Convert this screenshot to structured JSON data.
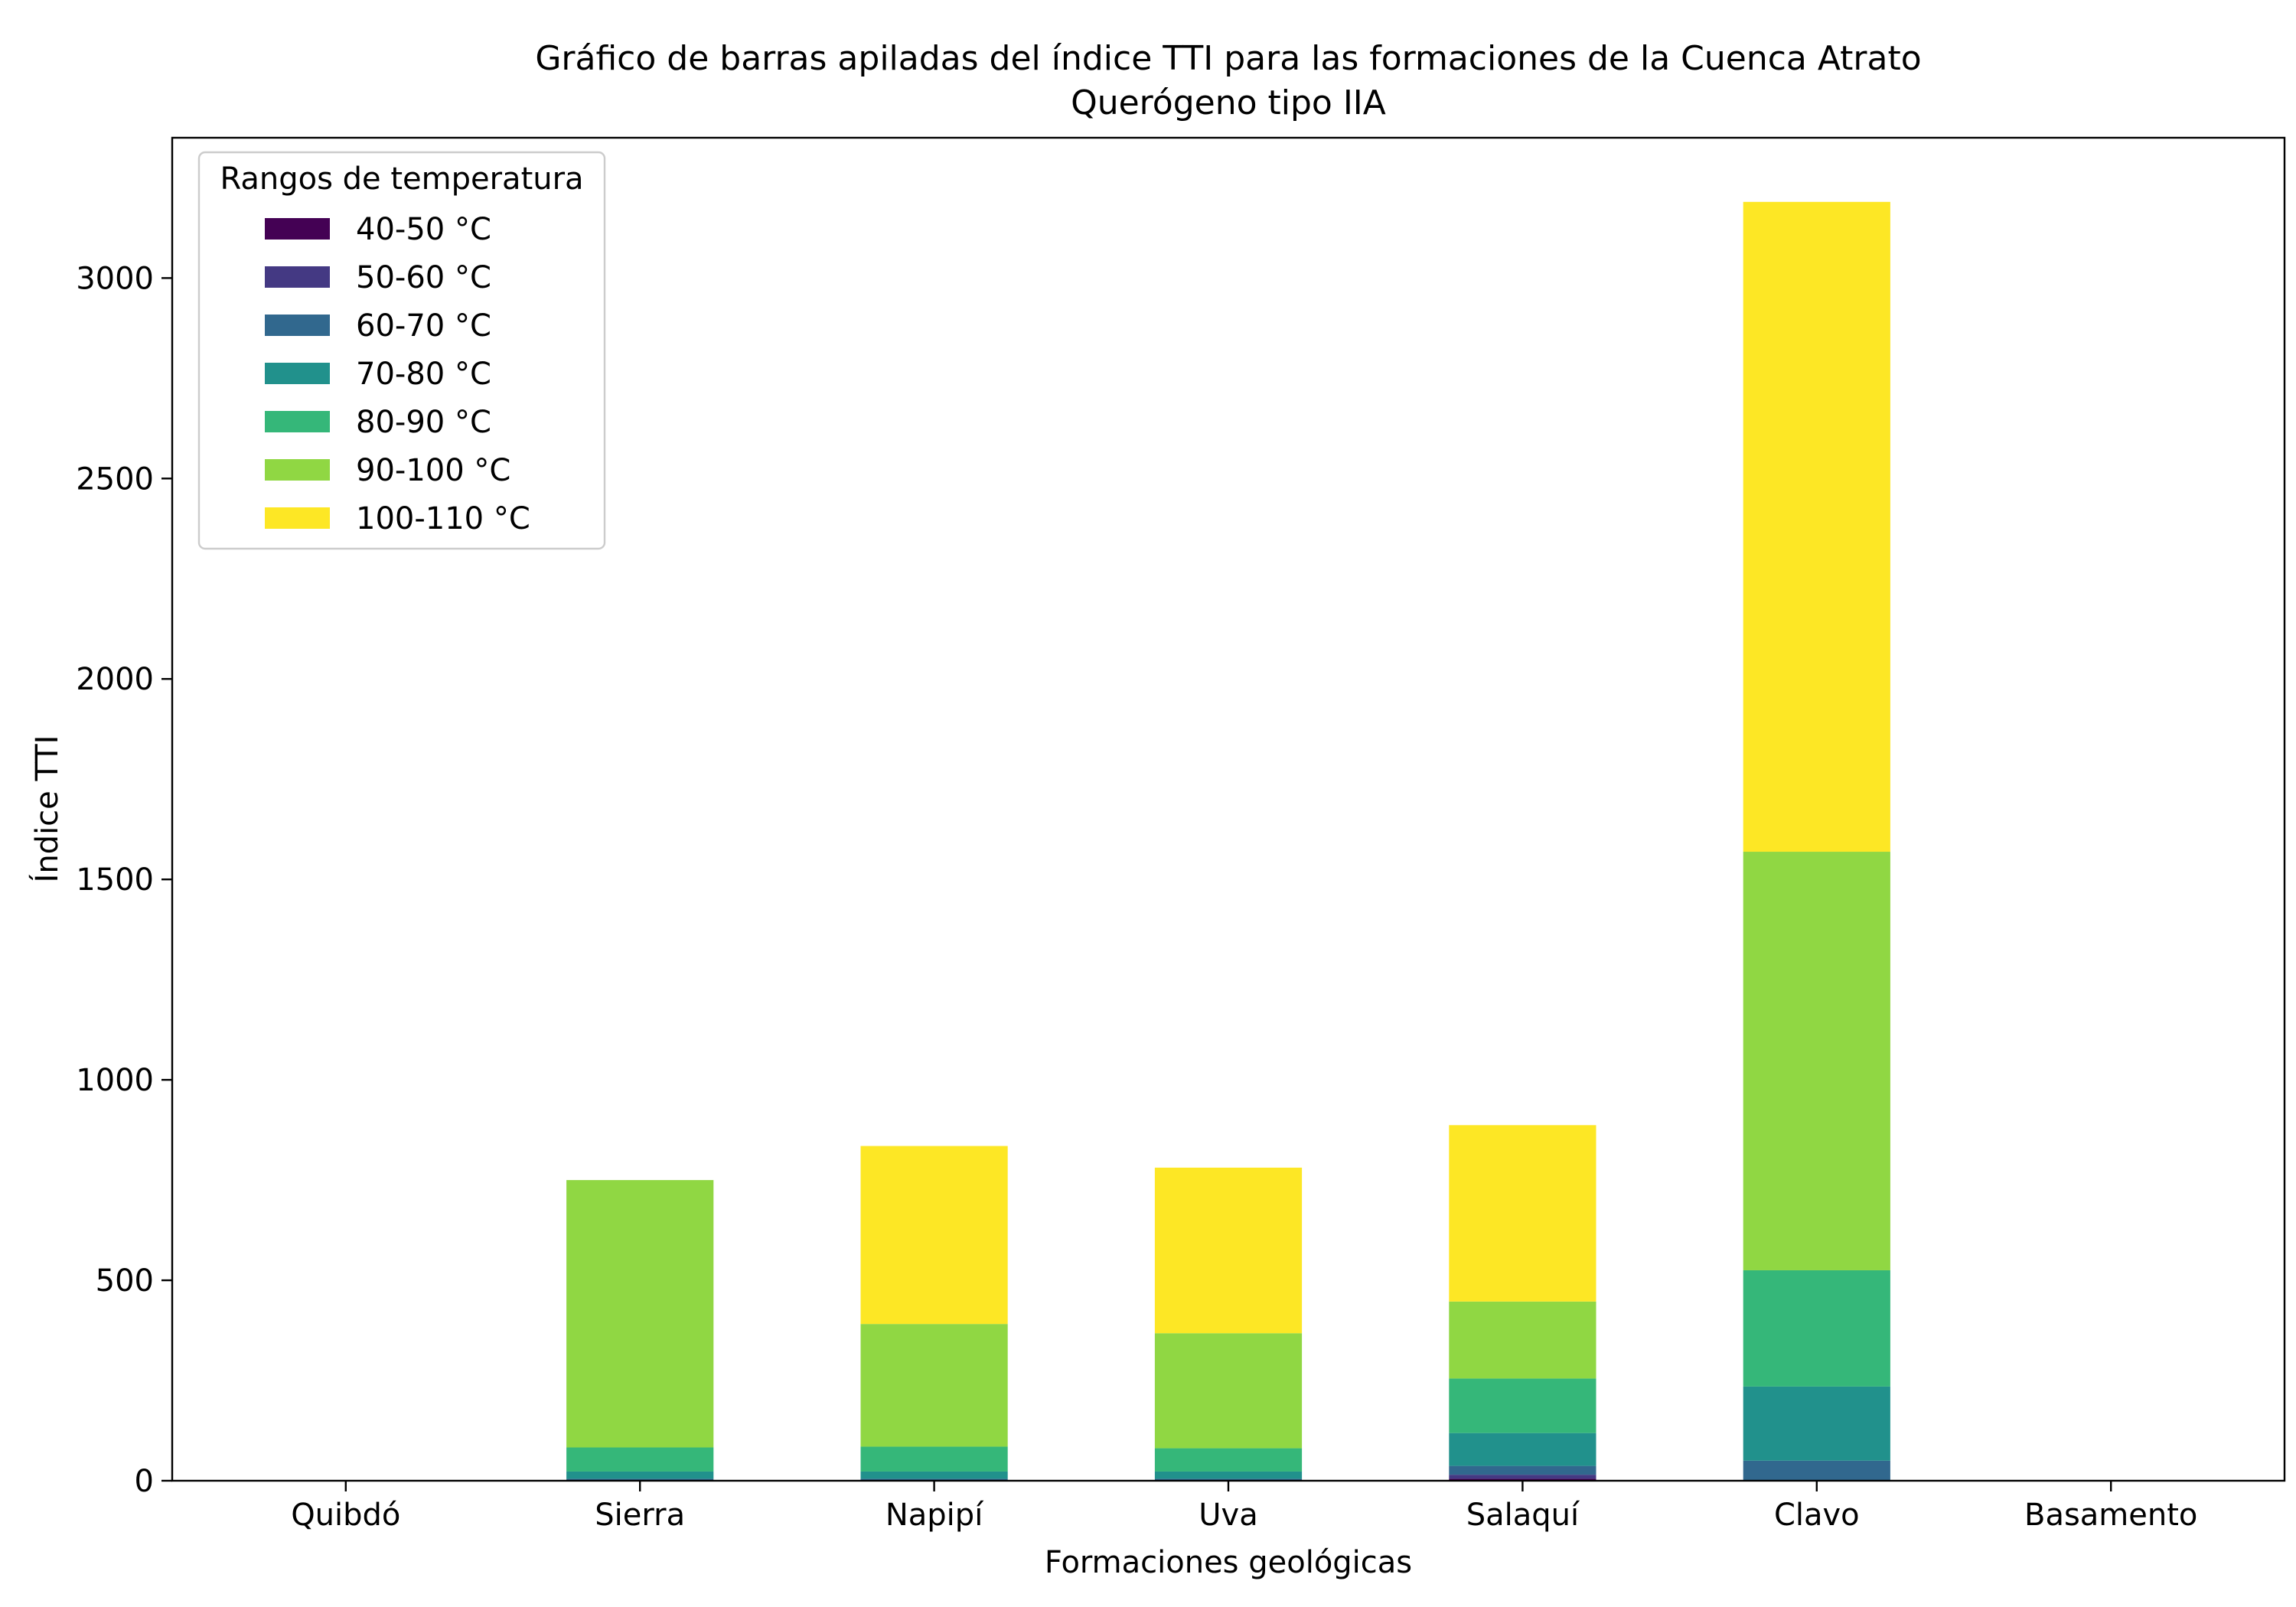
{
  "chart_data": {
    "type": "bar",
    "stacked": true,
    "title": "Gráfico de barras apiladas del índice TTI para las formaciones de la Cuenca Atrato",
    "subtitle": "Querógeno tipo IIA",
    "xlabel": "Formaciones geológicas",
    "ylabel": "Índice TTI",
    "ylim": [
      0,
      3350
    ],
    "yticks": [
      0,
      500,
      1000,
      1500,
      2000,
      2500,
      3000
    ],
    "grid": false,
    "legend": {
      "title": "Rangos de temperatura",
      "placement": "top-left"
    },
    "categories": [
      "Quibdó",
      "Sierra",
      "Napipí",
      "Uva",
      "Salaquí",
      "Clavo",
      "Basamento"
    ],
    "series": [
      {
        "name": "40-50 °C",
        "color": "#440154",
        "values": [
          0,
          0,
          0,
          0,
          5,
          0,
          0
        ]
      },
      {
        "name": "50-60 °C",
        "color": "#443983",
        "values": [
          0,
          0,
          0,
          0,
          10,
          0,
          0
        ]
      },
      {
        "name": "60-70 °C",
        "color": "#31688e",
        "values": [
          0,
          5,
          5,
          5,
          22,
          50,
          0
        ]
      },
      {
        "name": "70-80 °C",
        "color": "#21918c",
        "values": [
          0,
          18,
          18,
          18,
          82,
          185,
          0
        ]
      },
      {
        "name": "80-90 °C",
        "color": "#35b779",
        "values": [
          0,
          60,
          62,
          58,
          136,
          290,
          0
        ]
      },
      {
        "name": "90-100 °C",
        "color": "#90d743",
        "values": [
          0,
          667,
          306,
          287,
          192,
          1044,
          0
        ]
      },
      {
        "name": "100-110 °C",
        "color": "#fde725",
        "values": [
          0,
          0,
          444,
          413,
          440,
          1621,
          0
        ]
      }
    ]
  }
}
